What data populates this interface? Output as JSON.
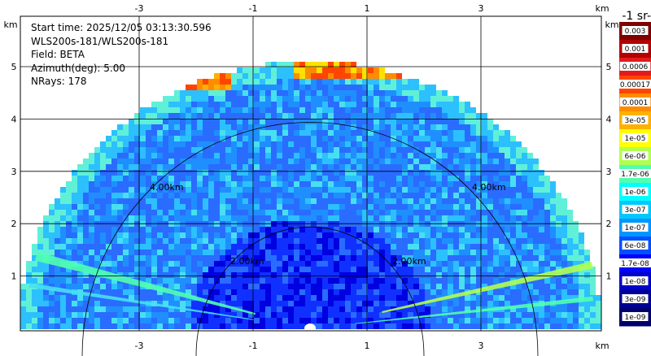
{
  "info": {
    "start_time": "Start time: 2025/12/05 03:13:30.596",
    "instrument": "WLS200s-181/WLS200s-181",
    "field": "Field: BETA",
    "azimuth": "Azimuth(deg): 5.00",
    "nrays": "NRays: 178"
  },
  "axes": {
    "x_unit": "km",
    "y_unit": "km",
    "x_ticks": [
      "-3",
      "-1",
      "1",
      "3"
    ],
    "y_ticks": [
      "5",
      "4",
      "3",
      "2",
      "1"
    ],
    "x_tick_values": [
      -3,
      -1,
      1,
      3
    ],
    "y_tick_values": [
      5,
      4,
      3,
      2,
      1
    ],
    "x_range": [
      -5.0,
      5.0
    ],
    "y_range": [
      0,
      5.75
    ],
    "grid": true,
    "range_rings_km": [
      2,
      4
    ],
    "ring_labels": [
      "4.00km",
      "4.00km",
      "2.00km",
      "2.00km"
    ]
  },
  "colorbar": {
    "title": "-1 sr-",
    "labels": [
      "0.003",
      "0.001",
      "0.0006",
      "0.00017",
      "0.0001",
      "3e-05",
      "1e-05",
      "6e-06",
      "1.7e-06",
      "1e-06",
      "3e-07",
      "1e-07",
      "6e-08",
      "1.7e-08",
      "1e-08",
      "3e-09",
      "1e-09"
    ],
    "colors": [
      "#7f0000",
      "#b30000",
      "#e31a1c",
      "#ff4500",
      "#ff8c00",
      "#ffb000",
      "#ffff00",
      "#b0ff50",
      "#50ffb0",
      "#00ffff",
      "#00c8ff",
      "#0096ff",
      "#0050ff",
      "#0000ff",
      "#0000c8",
      "#000096",
      "#00006e"
    ]
  },
  "chart_data": {
    "type": "heatmap",
    "description_field": "BETA",
    "scan_max_range_km": 5.1,
    "x_unit": "km",
    "y_unit": "km"
  }
}
